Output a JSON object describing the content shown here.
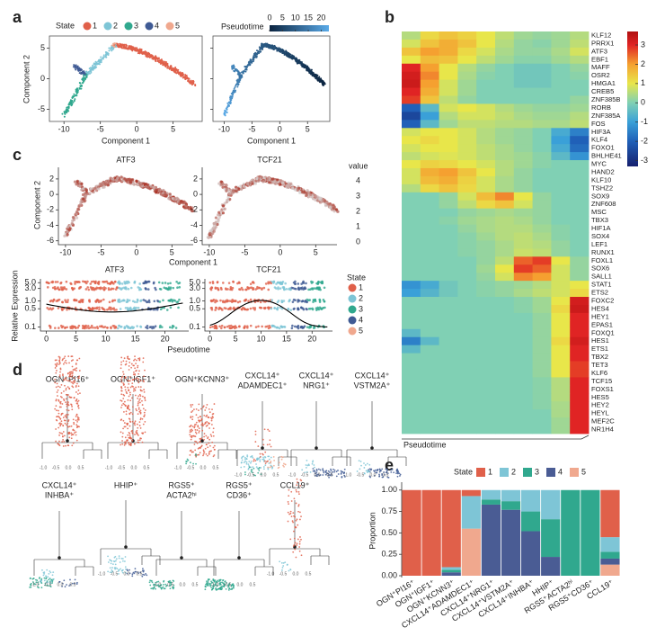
{
  "panel_labels": [
    "a",
    "b",
    "c",
    "d",
    "e"
  ],
  "panel_a": {
    "state_title": "State",
    "states": [
      "1",
      "2",
      "3",
      "4",
      "5"
    ],
    "state_colors": [
      "#e0604a",
      "#7ec5d6",
      "#30a88e",
      "#3f5a94",
      "#f0a88e"
    ],
    "pseudotime_title": "Pseudotime",
    "pseudotime_ticks": [
      0,
      5,
      10,
      15,
      20
    ],
    "pseudotime_lim": [
      0,
      23
    ],
    "pseudotime_colors": [
      "#0b2440",
      "#5aaae8"
    ],
    "xlabel": "Component 1",
    "ylabel": "Component 2",
    "xticks": [
      -10,
      -5,
      0,
      5
    ],
    "xlim": [
      -12,
      9
    ],
    "yticks": [
      5,
      0,
      -5
    ],
    "ylim": [
      -7,
      7
    ]
  },
  "panel_b": {
    "xlabel": "Pseudotime",
    "genes": [
      "KLF12",
      "PRRX1",
      "ATF3",
      "EBF1",
      "MAFF",
      "OSR2",
      "HMGA1",
      "CREB5",
      "ZNF385B",
      "RORB",
      "ZNF385A",
      "FOS",
      "HIF3A",
      "KLF4",
      "FOXO1",
      "BHLHE41",
      "MYC",
      "HAND2",
      "KLF10",
      "TSHZ2",
      "SOX9",
      "ZNF608",
      "MSC",
      "TBX3",
      "HIF1A",
      "SOX4",
      "LEF1",
      "RUNX1",
      "FOXL1",
      "SOX6",
      "SALL1",
      "STAT1",
      "ETS2",
      "FOXC2",
      "HES4",
      "HEY1",
      "EPAS1",
      "FOXQ1",
      "HES1",
      "ETS1",
      "TBX2",
      "TET3",
      "KLF6",
      "TCF15",
      "FOXS1",
      "HES5",
      "HEY2",
      "HEYL",
      "MEF2C",
      "NR1H4"
    ],
    "matrix": [
      [
        0.5,
        1.2,
        1.5,
        1.3,
        1.0,
        0.6,
        0.3,
        0.2,
        0.3,
        0.5
      ],
      [
        0.8,
        1.5,
        1.8,
        1.5,
        1.0,
        0.5,
        0.2,
        0.1,
        0.3,
        0.6
      ],
      [
        1.5,
        2.0,
        1.8,
        1.2,
        0.8,
        0.4,
        0.2,
        0.2,
        0.4,
        0.8
      ],
      [
        1.0,
        1.6,
        1.5,
        1.0,
        0.6,
        0.3,
        0.1,
        0.1,
        0.3,
        0.5
      ],
      [
        3.0,
        2.0,
        1.0,
        0.5,
        0.2,
        0,
        -0.2,
        -0.2,
        0,
        0.2
      ],
      [
        3.2,
        2.2,
        1.0,
        0.4,
        0.1,
        0,
        -0.2,
        -0.2,
        0,
        0.1
      ],
      [
        3.3,
        2.0,
        0.8,
        0.3,
        0,
        0,
        -0.2,
        -0.2,
        0,
        0
      ],
      [
        3.0,
        1.8,
        0.8,
        0.3,
        0,
        0,
        0,
        0,
        0,
        0
      ],
      [
        2.8,
        1.5,
        0.6,
        0.2,
        0,
        0,
        0,
        0,
        0,
        0.2
      ],
      [
        -2.0,
        -0.5,
        0.8,
        1.0,
        0.8,
        0.5,
        0.3,
        0.2,
        0.2,
        0.3
      ],
      [
        -2.5,
        -1.0,
        0.5,
        0.8,
        0.8,
        0.6,
        0.4,
        0.3,
        0.3,
        0.5
      ],
      [
        -2.0,
        -0.5,
        0.3,
        0.6,
        0.6,
        0.5,
        0.5,
        0.4,
        0.4,
        0.6
      ],
      [
        0.8,
        1.0,
        1.0,
        0.8,
        0.5,
        0.3,
        0.2,
        0,
        -0.8,
        -1.5
      ],
      [
        1.0,
        1.2,
        1.0,
        0.8,
        0.5,
        0.3,
        0.2,
        0,
        -1.0,
        -2.0
      ],
      [
        0.8,
        1.0,
        1.0,
        0.8,
        0.6,
        0.4,
        0.2,
        0,
        -0.8,
        -1.8
      ],
      [
        0.6,
        0.8,
        0.9,
        0.8,
        0.6,
        0.4,
        0.3,
        0.1,
        -0.5,
        -1.2
      ],
      [
        1.0,
        1.3,
        1.2,
        1.0,
        0.8,
        0.5,
        0.3,
        0.1,
        0,
        0
      ],
      [
        0.8,
        1.8,
        2.0,
        1.5,
        1.0,
        0.5,
        0.2,
        0,
        0,
        0
      ],
      [
        0.8,
        1.6,
        1.8,
        1.3,
        0.8,
        0.4,
        0.2,
        0,
        0,
        0
      ],
      [
        0.5,
        1.2,
        1.5,
        1.2,
        0.8,
        0.4,
        0.2,
        0,
        0,
        0
      ],
      [
        0,
        0,
        0.2,
        0.8,
        1.6,
        2.2,
        1.0,
        0.2,
        0,
        0
      ],
      [
        0,
        0,
        0.2,
        0.6,
        1.2,
        1.5,
        0.8,
        0.2,
        0,
        0
      ],
      [
        0,
        0,
        0,
        0.2,
        0.3,
        0.4,
        0.3,
        0.2,
        0,
        0
      ],
      [
        0,
        0,
        0.1,
        0.3,
        0.4,
        0.5,
        0.4,
        0.2,
        0,
        0
      ],
      [
        0,
        0,
        0,
        0.2,
        0.4,
        0.5,
        0.5,
        0.3,
        0.1,
        0
      ],
      [
        0,
        0,
        0,
        0.1,
        0.3,
        0.5,
        0.6,
        0.4,
        0.1,
        0
      ],
      [
        0,
        0,
        0,
        0.1,
        0.2,
        0.4,
        0.6,
        0.5,
        0.2,
        0
      ],
      [
        0,
        0,
        0,
        0.1,
        0.2,
        0.4,
        0.7,
        0.6,
        0.2,
        0
      ],
      [
        0,
        0,
        0,
        0,
        0.2,
        0.6,
        2.5,
        2.8,
        1.0,
        0.2
      ],
      [
        0,
        0,
        0,
        0,
        0.3,
        1.0,
        2.8,
        2.5,
        0.8,
        0.2
      ],
      [
        0,
        0,
        0,
        0,
        0.2,
        0.8,
        2.2,
        2.0,
        0.8,
        0.2
      ],
      [
        -1.2,
        -0.8,
        -0.2,
        0,
        0.1,
        0.2,
        0.3,
        0.5,
        0.8,
        1.0
      ],
      [
        -1.0,
        -0.6,
        -0.2,
        0,
        0.1,
        0.2,
        0.4,
        0.6,
        0.8,
        1.2
      ],
      [
        0,
        0,
        0,
        0,
        0,
        0,
        0.1,
        0.3,
        1.0,
        3.2
      ],
      [
        0,
        0,
        0,
        0,
        0,
        0,
        0.1,
        0.3,
        1.2,
        3.3
      ],
      [
        0,
        0,
        0,
        0,
        0,
        0,
        0,
        0.2,
        1.0,
        3.0
      ],
      [
        0,
        0,
        0,
        0,
        0,
        0,
        0,
        0.2,
        1.0,
        3.0
      ],
      [
        -0.5,
        0,
        0,
        0,
        0,
        0,
        0,
        0.2,
        1.0,
        3.0
      ],
      [
        -1.5,
        -0.5,
        0,
        0,
        0,
        0,
        0,
        0.2,
        1.2,
        3.2
      ],
      [
        -0.5,
        0,
        0,
        0,
        0,
        0,
        0,
        0.2,
        1.0,
        3.0
      ],
      [
        0,
        0,
        0,
        0,
        0,
        0,
        0,
        0.2,
        1.0,
        3.0
      ],
      [
        0,
        0,
        0,
        0,
        0,
        0,
        0,
        0.2,
        1.0,
        2.8
      ],
      [
        0,
        0,
        0,
        0,
        0,
        0,
        0,
        0.2,
        1.0,
        2.8
      ],
      [
        0,
        0,
        0,
        0,
        0,
        0,
        0,
        0.1,
        0.5,
        3.0
      ],
      [
        0,
        0,
        0,
        0,
        0,
        0,
        0,
        0.1,
        0.5,
        3.0
      ],
      [
        0,
        0,
        0,
        0,
        0,
        0,
        0,
        0.1,
        0.5,
        3.0
      ],
      [
        0,
        0,
        0,
        0,
        0,
        0,
        0,
        0.1,
        0.4,
        3.0
      ],
      [
        0,
        0,
        0,
        0,
        0,
        0,
        0,
        0,
        0.4,
        3.0
      ],
      [
        0,
        0,
        0,
        0,
        0,
        0,
        0,
        0,
        0.3,
        3.0
      ],
      [
        0,
        0,
        0,
        0,
        0,
        0,
        0,
        0,
        0.3,
        3.0
      ]
    ],
    "colorscale": [
      [
        -3.3,
        "#16206e"
      ],
      [
        -2,
        "#2060b8"
      ],
      [
        -1,
        "#3aa0d8"
      ],
      [
        0,
        "#80d0b4"
      ],
      [
        1,
        "#e8e64a"
      ],
      [
        2,
        "#f5a030"
      ],
      [
        3,
        "#e02424"
      ],
      [
        3.7,
        "#b01010"
      ]
    ],
    "colorbar_ticks": [
      3,
      2,
      1,
      0,
      -1,
      -2,
      -3
    ],
    "colorbar_lim": [
      -3.3,
      3.7
    ]
  },
  "panel_c": {
    "top": {
      "genes": [
        "ATF3",
        "TCF21"
      ],
      "value_title": "value",
      "value_ticks": [
        4,
        3,
        2,
        1,
        0
      ],
      "xlabel": "Component 1",
      "ylabel": "Component 2",
      "xticks": [
        -10,
        -5,
        0,
        5
      ],
      "xlim": [
        -11,
        8
      ],
      "yticks": [
        2,
        0,
        -2,
        -4,
        -6
      ],
      "ylim": [
        -6.5,
        3.5
      ],
      "low_color": "#d8d8d8",
      "high_color": "#a82a1c"
    },
    "bottom": {
      "genes": [
        "ATF3",
        "TCF21"
      ],
      "ylabel": "Relative Expression",
      "log": true,
      "yticks": [
        0.1,
        0.5,
        {
          "value": 1.0,
          "label": "1.0"
        },
        {
          "value": 3.0,
          "label": "3.0"
        },
        {
          "value": 5.0,
          "label": "5.0"
        }
      ],
      "ylim": [
        0.07,
        7
      ],
      "xticks": [
        0,
        5,
        10,
        15,
        20
      ],
      "xlim": [
        -1,
        24
      ],
      "xlabel": "Pseudotime",
      "state_title": "State",
      "states": [
        "1",
        "2",
        "3",
        "4",
        "5"
      ]
    }
  },
  "panel_d": {
    "subsets": [
      [
        "OGN⁺PI16⁺"
      ],
      [
        "OGN⁺IGF1⁺"
      ],
      [
        "OGN⁺KCNN3⁺"
      ],
      [
        "CXCL14⁺",
        "ADAMDEC1⁺"
      ],
      [
        "CXCL14⁺",
        "NRG1⁺"
      ],
      [
        "CXCL14⁺",
        "VSTM2A⁺"
      ],
      [
        "CXCL14⁺",
        "INHBA⁺"
      ],
      [
        "HHIP⁺"
      ],
      [
        "RGS5⁺",
        "ACTA2ʰⁱ"
      ],
      [
        "RGS5⁺",
        "CD36⁺"
      ],
      [
        "CCL19⁺"
      ]
    ],
    "axis_labels": [
      "-1.0",
      "-0.5",
      "0.0",
      "0.5"
    ]
  },
  "chart_data": {
    "type": "stacked_bar",
    "ylabel": "Proportion",
    "legend_title": "State",
    "legend": "top",
    "categories": [
      "OGN⁺PI16⁺",
      "OGN⁺IGF1⁺",
      "OGN⁺KCNN3⁺",
      "CXCL14⁺ADAMDEC1⁺",
      "CXCL14⁺NRG1⁺",
      "CXCL14⁺VSTM2A⁺",
      "CXCL14⁺INHBA⁺",
      "HHIP⁺",
      "RGS5⁺ACTA2ʰⁱ",
      "RGS5⁺CD36⁺",
      "CCL19⁺"
    ],
    "series": [
      {
        "name": "1",
        "color": "#e0604a",
        "values": [
          1,
          1,
          0.9,
          0.07,
          0,
          0,
          0,
          0,
          0,
          0,
          0.55
        ]
      },
      {
        "name": "2",
        "color": "#7ec5d6",
        "values": [
          0,
          0,
          0.03,
          0.38,
          0.11,
          0.13,
          0.25,
          0.34,
          0,
          0,
          0.17
        ]
      },
      {
        "name": "3",
        "color": "#30a88e",
        "values": [
          0,
          0,
          0.03,
          0,
          0.06,
          0.1,
          0.23,
          0.44,
          1,
          1,
          0.08
        ]
      },
      {
        "name": "4",
        "color": "#4a5c94",
        "values": [
          0,
          0,
          0.04,
          0,
          0.83,
          0.77,
          0.52,
          0.22,
          0,
          0,
          0.07
        ]
      },
      {
        "name": "5",
        "color": "#f0a88e",
        "values": [
          0,
          0,
          0,
          0.55,
          0,
          0,
          0,
          0,
          0,
          0,
          0.13
        ]
      }
    ],
    "ylim": [
      0,
      1.05
    ],
    "yticks": [
      {
        "value": 0,
        "label": "0.00"
      },
      {
        "value": 0.25,
        "label": "0.25"
      },
      {
        "value": 0.5,
        "label": "0.50"
      },
      {
        "value": 0.75,
        "label": "0.75"
      },
      {
        "value": 1,
        "label": "1.00"
      }
    ]
  }
}
